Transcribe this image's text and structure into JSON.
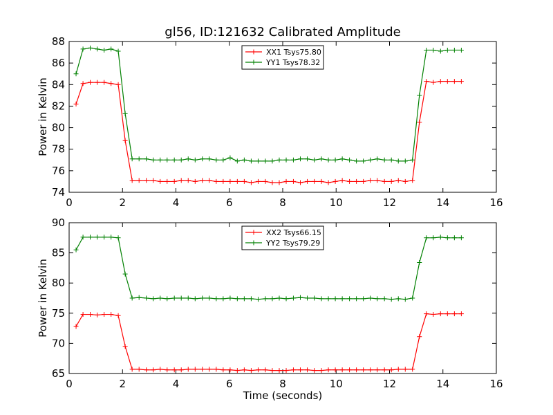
{
  "chart_data": [
    {
      "type": "line",
      "title": "gl56, ID:121632 Calibrated Amplitude",
      "xlabel": "",
      "ylabel": "Power in Kelvin",
      "xlim": [
        0,
        16
      ],
      "ylim": [
        74,
        88
      ],
      "xticks": [
        0,
        2,
        4,
        6,
        8,
        10,
        12,
        14,
        16
      ],
      "yticks": [
        74,
        76,
        78,
        80,
        82,
        84,
        86,
        88
      ],
      "grid": false,
      "legend_position": "top-center",
      "x": [
        0.26,
        0.52,
        0.79,
        1.05,
        1.31,
        1.57,
        1.84,
        2.1,
        2.36,
        2.62,
        2.89,
        3.15,
        3.41,
        3.67,
        3.94,
        4.2,
        4.46,
        4.72,
        4.99,
        5.25,
        5.51,
        5.77,
        6.03,
        6.3,
        6.56,
        6.82,
        7.08,
        7.35,
        7.61,
        7.87,
        8.13,
        8.4,
        8.66,
        8.92,
        9.18,
        9.45,
        9.71,
        9.97,
        10.23,
        10.5,
        10.76,
        11.02,
        11.28,
        11.54,
        11.81,
        12.07,
        12.33,
        12.59,
        12.86,
        13.12,
        13.38,
        13.64,
        13.91,
        14.17,
        14.43,
        14.69
      ],
      "series": [
        {
          "name": "XX1 Tsys75.80",
          "color": "#ff0000",
          "values": [
            82.2,
            84.1,
            84.2,
            84.2,
            84.2,
            84.1,
            84.0,
            78.8,
            75.1,
            75.1,
            75.1,
            75.1,
            75.0,
            75.0,
            75.0,
            75.1,
            75.1,
            75.0,
            75.1,
            75.1,
            75.0,
            75.0,
            75.0,
            75.0,
            75.0,
            74.9,
            75.0,
            75.0,
            74.9,
            74.9,
            75.0,
            75.0,
            74.9,
            75.0,
            75.0,
            75.0,
            74.9,
            75.0,
            75.1,
            75.0,
            75.0,
            75.0,
            75.1,
            75.1,
            75.0,
            75.0,
            75.1,
            75.0,
            75.1,
            80.5,
            84.3,
            84.2,
            84.3,
            84.3,
            84.3,
            84.3
          ]
        },
        {
          "name": "YY1 Tsys78.32",
          "color": "#008000",
          "values": [
            85.0,
            87.3,
            87.4,
            87.3,
            87.2,
            87.3,
            87.1,
            81.3,
            77.1,
            77.1,
            77.1,
            77.0,
            77.0,
            77.0,
            77.0,
            77.0,
            77.1,
            77.0,
            77.1,
            77.1,
            77.0,
            77.0,
            77.2,
            76.9,
            77.0,
            76.9,
            76.9,
            76.9,
            76.9,
            77.0,
            77.0,
            77.0,
            77.1,
            77.1,
            77.0,
            77.1,
            77.0,
            77.0,
            77.1,
            77.0,
            76.9,
            76.9,
            77.0,
            77.1,
            77.0,
            77.0,
            76.9,
            76.9,
            77.0,
            83.0,
            87.2,
            87.2,
            87.1,
            87.2,
            87.2,
            87.2
          ]
        }
      ]
    },
    {
      "type": "line",
      "title": "",
      "xlabel": "Time (seconds)",
      "ylabel": "Power in Kelvin",
      "xlim": [
        0,
        16
      ],
      "ylim": [
        65,
        90
      ],
      "xticks": [
        0,
        2,
        4,
        6,
        8,
        10,
        12,
        14,
        16
      ],
      "yticks": [
        65,
        70,
        75,
        80,
        85,
        90
      ],
      "grid": false,
      "legend_position": "top-center",
      "x": [
        0.26,
        0.52,
        0.79,
        1.05,
        1.31,
        1.57,
        1.84,
        2.1,
        2.36,
        2.62,
        2.89,
        3.15,
        3.41,
        3.67,
        3.94,
        4.2,
        4.46,
        4.72,
        4.99,
        5.25,
        5.51,
        5.77,
        6.03,
        6.3,
        6.56,
        6.82,
        7.08,
        7.35,
        7.61,
        7.87,
        8.13,
        8.4,
        8.66,
        8.92,
        9.18,
        9.45,
        9.71,
        9.97,
        10.23,
        10.5,
        10.76,
        11.02,
        11.28,
        11.54,
        11.81,
        12.07,
        12.33,
        12.59,
        12.86,
        13.12,
        13.38,
        13.64,
        13.91,
        14.17,
        14.43,
        14.69
      ],
      "series": [
        {
          "name": "XX2 Tsys66.15",
          "color": "#ff0000",
          "values": [
            72.8,
            74.8,
            74.8,
            74.7,
            74.8,
            74.8,
            74.6,
            69.5,
            65.7,
            65.7,
            65.6,
            65.6,
            65.7,
            65.6,
            65.6,
            65.6,
            65.7,
            65.7,
            65.7,
            65.7,
            65.7,
            65.6,
            65.6,
            65.5,
            65.6,
            65.5,
            65.6,
            65.6,
            65.5,
            65.5,
            65.5,
            65.6,
            65.6,
            65.6,
            65.5,
            65.5,
            65.6,
            65.6,
            65.6,
            65.6,
            65.6,
            65.6,
            65.6,
            65.6,
            65.6,
            65.6,
            65.7,
            65.7,
            65.7,
            71.1,
            74.9,
            74.8,
            74.9,
            74.9,
            74.9,
            74.9
          ]
        },
        {
          "name": "YY2 Tsys79.29",
          "color": "#008000",
          "values": [
            85.5,
            87.6,
            87.6,
            87.6,
            87.6,
            87.6,
            87.5,
            81.5,
            77.5,
            77.6,
            77.5,
            77.4,
            77.5,
            77.4,
            77.5,
            77.5,
            77.5,
            77.4,
            77.5,
            77.5,
            77.4,
            77.4,
            77.5,
            77.4,
            77.4,
            77.4,
            77.3,
            77.4,
            77.4,
            77.5,
            77.4,
            77.5,
            77.6,
            77.5,
            77.5,
            77.4,
            77.4,
            77.4,
            77.4,
            77.4,
            77.4,
            77.4,
            77.5,
            77.4,
            77.4,
            77.3,
            77.4,
            77.3,
            77.5,
            83.4,
            87.5,
            87.5,
            87.6,
            87.5,
            87.5,
            87.5
          ]
        }
      ]
    }
  ]
}
